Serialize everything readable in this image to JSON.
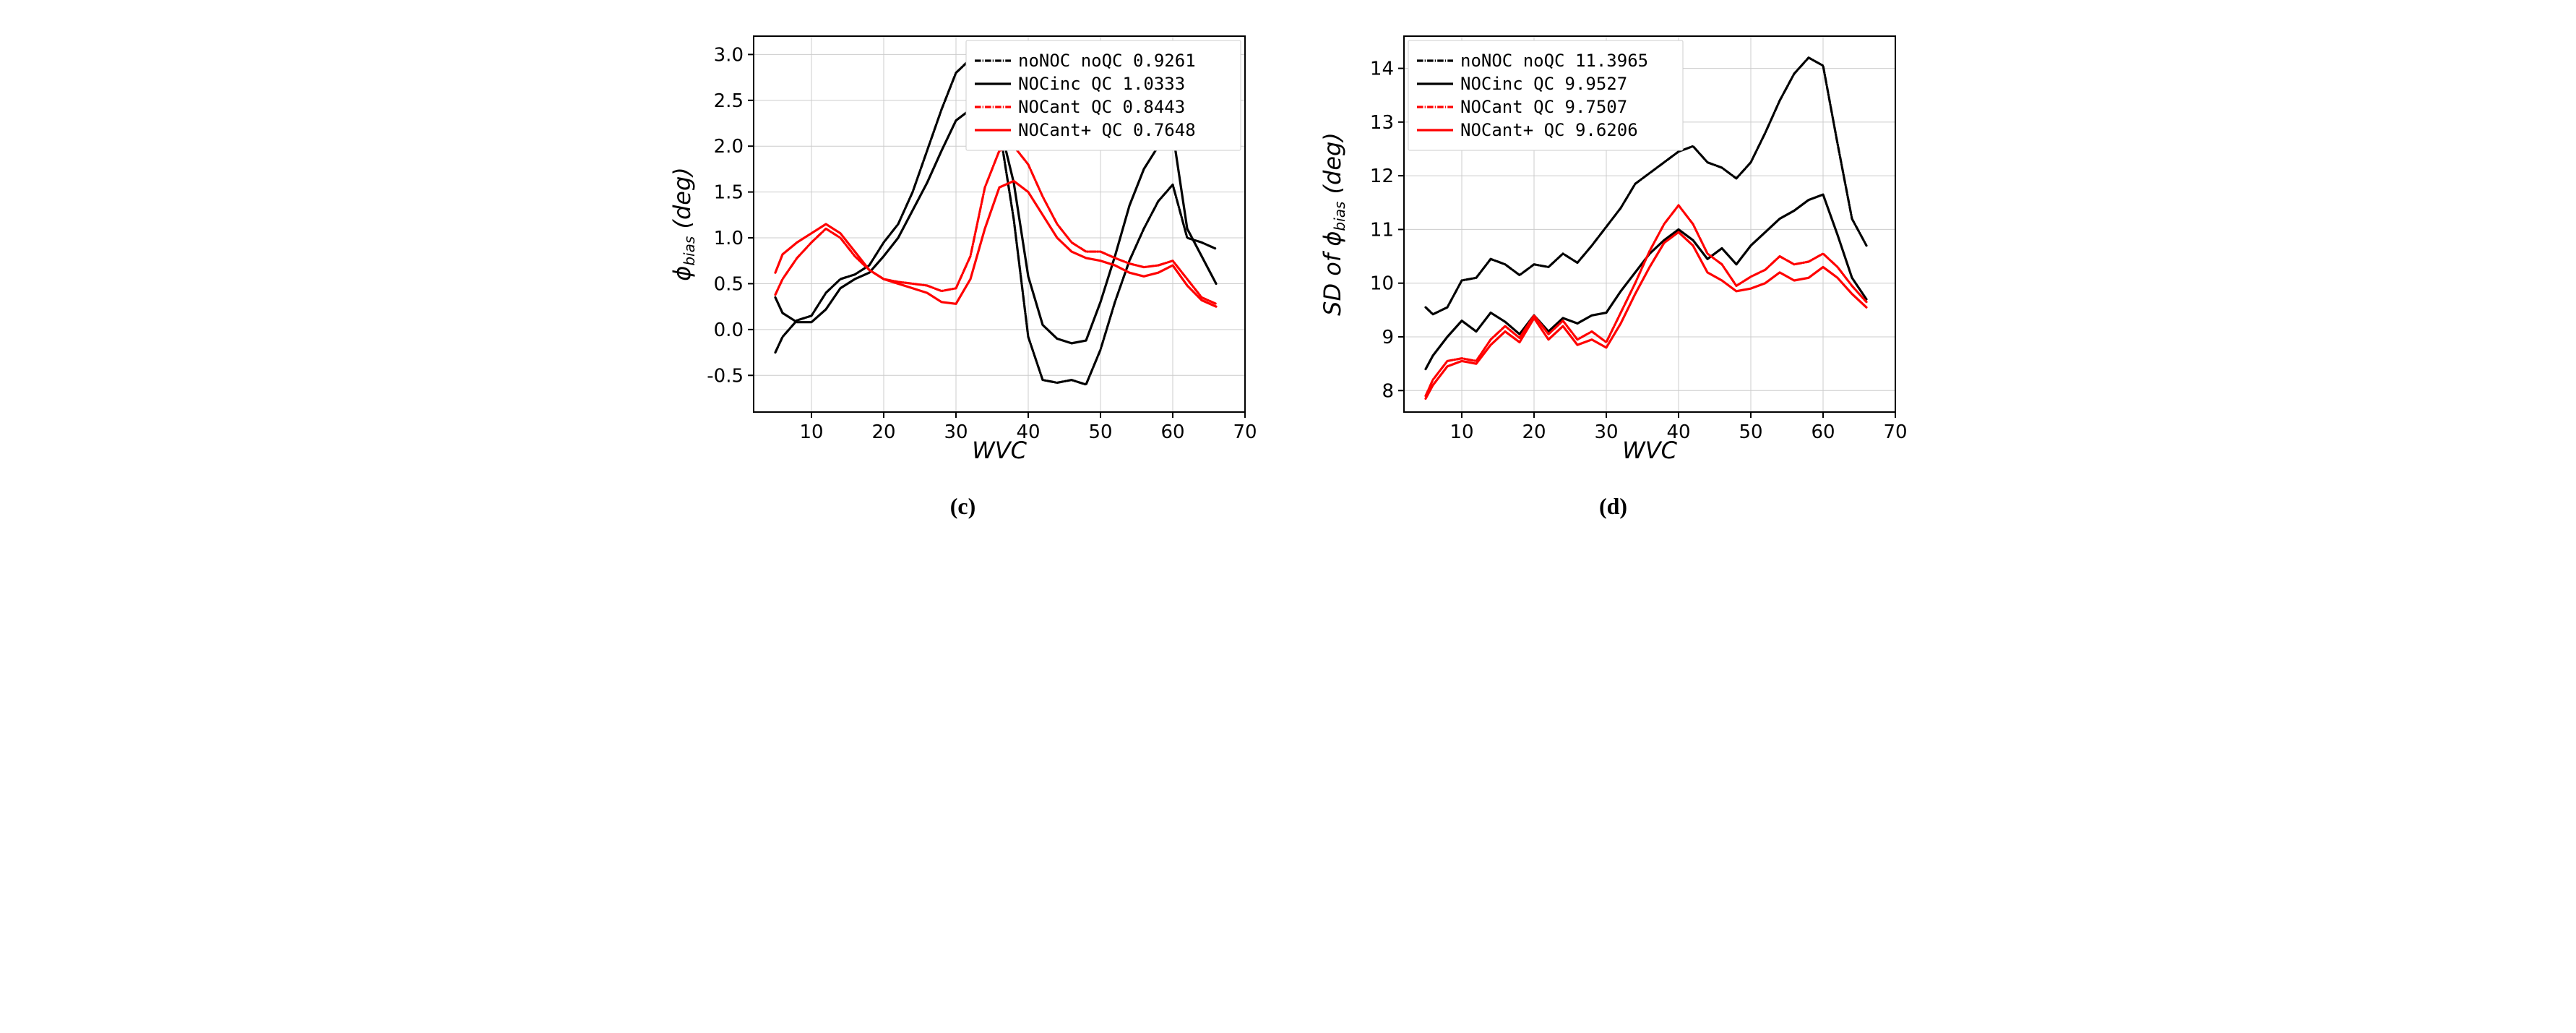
{
  "panel_c": {
    "type": "line",
    "caption": "(c)",
    "xlabel": "WVC",
    "ylabel": "ϕ_bias  (deg)",
    "ylabel_prefix": "ϕ",
    "ylabel_sub": "bias",
    "ylabel_suffix": "(deg)",
    "xlim": [
      2,
      70
    ],
    "ylim": [
      -0.9,
      3.2
    ],
    "xticks": [
      10,
      20,
      30,
      40,
      50,
      60,
      70
    ],
    "yticks": [
      -0.5,
      0.0,
      0.5,
      1.0,
      1.5,
      2.0,
      2.5,
      3.0
    ],
    "background_color": "#ffffff",
    "grid_color": "#cccccc",
    "axis_color": "#000000",
    "line_width": 3.2,
    "legend": {
      "position": "upper-right",
      "items": [
        {
          "label": "noNOC   noQC 0.9261",
          "color": "#000000",
          "dash": "dashdot"
        },
        {
          "label": "NOCinc  QC 1.0333",
          "color": "#000000",
          "dash": "solid"
        },
        {
          "label": "NOCant  QC 0.8443",
          "color": "#ff0000",
          "dash": "dashdot"
        },
        {
          "label": "NOCant+ QC 0.7648",
          "color": "#ff0000",
          "dash": "solid"
        }
      ]
    },
    "series": [
      {
        "name": "noNOC noQC",
        "color": "#000000",
        "dash": "dashdot",
        "x": [
          5,
          6,
          8,
          10,
          12,
          14,
          16,
          18,
          20,
          22,
          24,
          26,
          28,
          30,
          32,
          34,
          36,
          38,
          40,
          42,
          44,
          46,
          48,
          50,
          52,
          54,
          56,
          58,
          60,
          62,
          64,
          66
        ],
        "y": [
          -0.25,
          -0.08,
          0.1,
          0.15,
          0.4,
          0.55,
          0.6,
          0.7,
          0.95,
          1.15,
          1.5,
          1.95,
          2.4,
          2.8,
          2.95,
          2.7,
          2.2,
          1.2,
          -0.08,
          -0.55,
          -0.58,
          -0.55,
          -0.6,
          -0.22,
          0.3,
          0.75,
          1.1,
          1.4,
          1.58,
          1.0,
          0.95,
          0.88
        ]
      },
      {
        "name": "NOCinc QC",
        "color": "#000000",
        "dash": "solid",
        "x": [
          5,
          6,
          8,
          10,
          12,
          14,
          16,
          18,
          20,
          22,
          24,
          26,
          28,
          30,
          32,
          34,
          36,
          38,
          40,
          42,
          44,
          46,
          48,
          50,
          52,
          54,
          56,
          58,
          60,
          62,
          64,
          66
        ],
        "y": [
          0.35,
          0.18,
          0.08,
          0.08,
          0.22,
          0.45,
          0.55,
          0.62,
          0.8,
          1.0,
          1.3,
          1.6,
          1.95,
          2.28,
          2.4,
          2.55,
          2.25,
          1.6,
          0.58,
          0.05,
          -0.1,
          -0.15,
          -0.12,
          0.3,
          0.8,
          1.35,
          1.75,
          2.0,
          2.15,
          1.1,
          0.8,
          0.5
        ]
      },
      {
        "name": "NOCant QC",
        "color": "#ff0000",
        "dash": "dashdot",
        "x": [
          5,
          6,
          8,
          10,
          12,
          14,
          16,
          18,
          20,
          22,
          24,
          26,
          28,
          30,
          32,
          34,
          36,
          38,
          40,
          42,
          44,
          46,
          48,
          50,
          52,
          54,
          56,
          58,
          60,
          62,
          64,
          66
        ],
        "y": [
          0.38,
          0.55,
          0.78,
          0.95,
          1.1,
          1.0,
          0.8,
          0.65,
          0.55,
          0.52,
          0.5,
          0.48,
          0.42,
          0.45,
          0.8,
          1.55,
          1.95,
          2.0,
          1.8,
          1.45,
          1.15,
          0.95,
          0.85,
          0.85,
          0.78,
          0.72,
          0.68,
          0.7,
          0.75,
          0.55,
          0.35,
          0.28
        ]
      },
      {
        "name": "NOCant+ QC",
        "color": "#ff0000",
        "dash": "solid",
        "x": [
          5,
          6,
          8,
          10,
          12,
          14,
          16,
          18,
          20,
          22,
          24,
          26,
          28,
          30,
          32,
          34,
          36,
          38,
          40,
          42,
          44,
          46,
          48,
          50,
          52,
          54,
          56,
          58,
          60,
          62,
          64,
          66
        ],
        "y": [
          0.62,
          0.82,
          0.95,
          1.05,
          1.15,
          1.05,
          0.85,
          0.65,
          0.55,
          0.5,
          0.45,
          0.4,
          0.3,
          0.28,
          0.55,
          1.1,
          1.55,
          1.62,
          1.5,
          1.25,
          1.0,
          0.85,
          0.78,
          0.75,
          0.7,
          0.62,
          0.58,
          0.62,
          0.7,
          0.48,
          0.32,
          0.25
        ]
      }
    ]
  },
  "panel_d": {
    "type": "line",
    "caption": "(d)",
    "xlabel": "WVC",
    "ylabel_prefix": "SD of ϕ",
    "ylabel_sub": "bias",
    "ylabel_suffix": "(deg)",
    "xlim": [
      2,
      70
    ],
    "ylim": [
      7.6,
      14.6
    ],
    "xticks": [
      10,
      20,
      30,
      40,
      50,
      60,
      70
    ],
    "yticks": [
      8,
      9,
      10,
      11,
      12,
      13,
      14
    ],
    "background_color": "#ffffff",
    "grid_color": "#cccccc",
    "axis_color": "#000000",
    "line_width": 3.2,
    "legend": {
      "position": "upper-left",
      "items": [
        {
          "label": "noNOC   noQC 11.3965",
          "color": "#000000",
          "dash": "dashdot"
        },
        {
          "label": "NOCinc  QC 9.9527",
          "color": "#000000",
          "dash": "solid"
        },
        {
          "label": "NOCant  QC 9.7507",
          "color": "#ff0000",
          "dash": "dashdot"
        },
        {
          "label": "NOCant+ QC 9.6206",
          "color": "#ff0000",
          "dash": "solid"
        }
      ]
    },
    "series": [
      {
        "name": "noNOC noQC",
        "color": "#000000",
        "dash": "dashdot",
        "x": [
          5,
          6,
          8,
          10,
          12,
          14,
          16,
          18,
          20,
          22,
          24,
          26,
          28,
          30,
          32,
          34,
          36,
          38,
          40,
          42,
          44,
          46,
          48,
          50,
          52,
          54,
          56,
          58,
          60,
          62,
          64,
          66
        ],
        "y": [
          9.55,
          9.42,
          9.55,
          10.05,
          10.1,
          10.45,
          10.35,
          10.15,
          10.35,
          10.3,
          10.55,
          10.38,
          10.7,
          11.05,
          11.4,
          11.85,
          12.05,
          12.25,
          12.45,
          12.55,
          12.25,
          12.15,
          11.95,
          12.25,
          12.8,
          13.4,
          13.9,
          14.2,
          14.05,
          12.6,
          11.2,
          10.7
        ]
      },
      {
        "name": "NOCinc QC",
        "color": "#000000",
        "dash": "solid",
        "x": [
          5,
          6,
          8,
          10,
          12,
          14,
          16,
          18,
          20,
          22,
          24,
          26,
          28,
          30,
          32,
          34,
          36,
          38,
          40,
          42,
          44,
          46,
          48,
          50,
          52,
          54,
          56,
          58,
          60,
          62,
          64,
          66
        ],
        "y": [
          8.4,
          8.65,
          9.0,
          9.3,
          9.1,
          9.45,
          9.28,
          9.05,
          9.4,
          9.1,
          9.35,
          9.25,
          9.4,
          9.45,
          9.85,
          10.2,
          10.55,
          10.8,
          11.0,
          10.8,
          10.45,
          10.65,
          10.35,
          10.7,
          10.95,
          11.2,
          11.35,
          11.55,
          11.65,
          10.9,
          10.1,
          9.7
        ]
      },
      {
        "name": "NOCant QC",
        "color": "#ff0000",
        "dash": "dashdot",
        "x": [
          5,
          6,
          8,
          10,
          12,
          14,
          16,
          18,
          20,
          22,
          24,
          26,
          28,
          30,
          32,
          34,
          36,
          38,
          40,
          42,
          44,
          46,
          48,
          50,
          52,
          54,
          56,
          58,
          60,
          62,
          64,
          66
        ],
        "y": [
          7.9,
          8.2,
          8.55,
          8.6,
          8.55,
          8.95,
          9.2,
          8.98,
          9.4,
          9.05,
          9.3,
          8.95,
          9.1,
          8.9,
          9.45,
          10.0,
          10.6,
          11.1,
          11.45,
          11.1,
          10.55,
          10.35,
          9.95,
          10.12,
          10.25,
          10.5,
          10.35,
          10.4,
          10.55,
          10.3,
          9.95,
          9.65
        ]
      },
      {
        "name": "NOCant+ QC",
        "color": "#ff0000",
        "dash": "solid",
        "x": [
          5,
          6,
          8,
          10,
          12,
          14,
          16,
          18,
          20,
          22,
          24,
          26,
          28,
          30,
          32,
          34,
          36,
          38,
          40,
          42,
          44,
          46,
          48,
          50,
          52,
          54,
          56,
          58,
          60,
          62,
          64,
          66
        ],
        "y": [
          7.85,
          8.1,
          8.45,
          8.55,
          8.5,
          8.85,
          9.1,
          8.9,
          9.35,
          8.95,
          9.2,
          8.85,
          8.95,
          8.8,
          9.25,
          9.8,
          10.3,
          10.75,
          10.95,
          10.7,
          10.2,
          10.05,
          9.85,
          9.9,
          10.0,
          10.2,
          10.05,
          10.1,
          10.3,
          10.1,
          9.8,
          9.55
        ]
      }
    ]
  }
}
